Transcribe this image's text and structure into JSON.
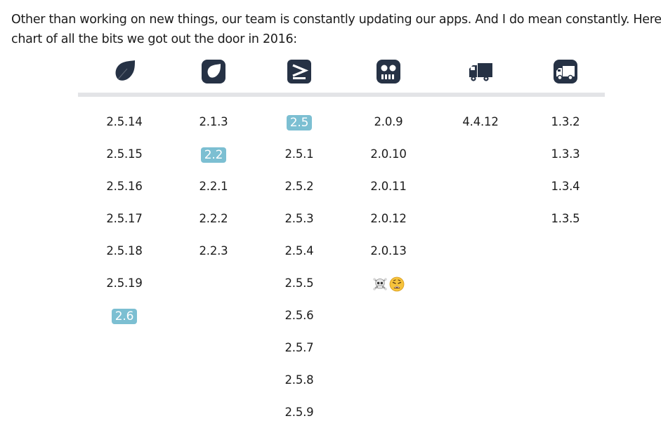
{
  "intro": {
    "line1": "Other than working on new things, our team is constantly updating our apps. And I do mean constantly. Here’s a",
    "line2": "chart of all the bits we got out the door in 2016:"
  },
  "colors": {
    "icon": "#263245",
    "highlight": "#7cbfd2",
    "rule": "#e3e4e7"
  },
  "apps": [
    {
      "icon": "leaf-icon",
      "versions": [
        {
          "label": "2.5.14",
          "major": false
        },
        {
          "label": "2.5.15",
          "major": false
        },
        {
          "label": "2.5.16",
          "major": false
        },
        {
          "label": "2.5.17",
          "major": false
        },
        {
          "label": "2.5.18",
          "major": false
        },
        {
          "label": "2.5.19",
          "major": false
        },
        {
          "label": "2.6",
          "major": true
        }
      ]
    },
    {
      "icon": "leaf-square-icon",
      "versions": [
        {
          "label": "2.1.3",
          "major": false
        },
        {
          "label": "2.2",
          "major": true
        },
        {
          "label": "2.2.1",
          "major": false
        },
        {
          "label": "2.2.2",
          "major": false
        },
        {
          "label": "2.2.3",
          "major": false
        }
      ]
    },
    {
      "icon": "terminal-prompt-icon",
      "versions": [
        {
          "label": "2.5",
          "major": true
        },
        {
          "label": "2.5.1",
          "major": false
        },
        {
          "label": "2.5.2",
          "major": false
        },
        {
          "label": "2.5.3",
          "major": false
        },
        {
          "label": "2.5.4",
          "major": false
        },
        {
          "label": "2.5.5",
          "major": false
        },
        {
          "label": "2.5.6",
          "major": false
        },
        {
          "label": "2.5.7",
          "major": false
        },
        {
          "label": "2.5.8",
          "major": false
        },
        {
          "label": "2.5.9",
          "major": false
        }
      ]
    },
    {
      "icon": "robot-face-icon",
      "versions": [
        {
          "label": "2.0.9",
          "major": false
        },
        {
          "label": "2.0.10",
          "major": false
        },
        {
          "label": "2.0.11",
          "major": false
        },
        {
          "label": "2.0.12",
          "major": false
        },
        {
          "label": "2.0.13",
          "major": false
        },
        {
          "label": "☠️😩",
          "major": false,
          "emoji": [
            "skull-crossbones-icon",
            "weary-face-icon"
          ]
        }
      ]
    },
    {
      "icon": "delivery-truck-icon",
      "versions": [
        {
          "label": "4.4.12",
          "major": false
        }
      ]
    },
    {
      "icon": "delivery-truck-square-icon",
      "versions": [
        {
          "label": "1.3.2",
          "major": false
        },
        {
          "label": "1.3.3",
          "major": false
        },
        {
          "label": "1.3.4",
          "major": false
        },
        {
          "label": "1.3.5",
          "major": false
        }
      ]
    }
  ]
}
